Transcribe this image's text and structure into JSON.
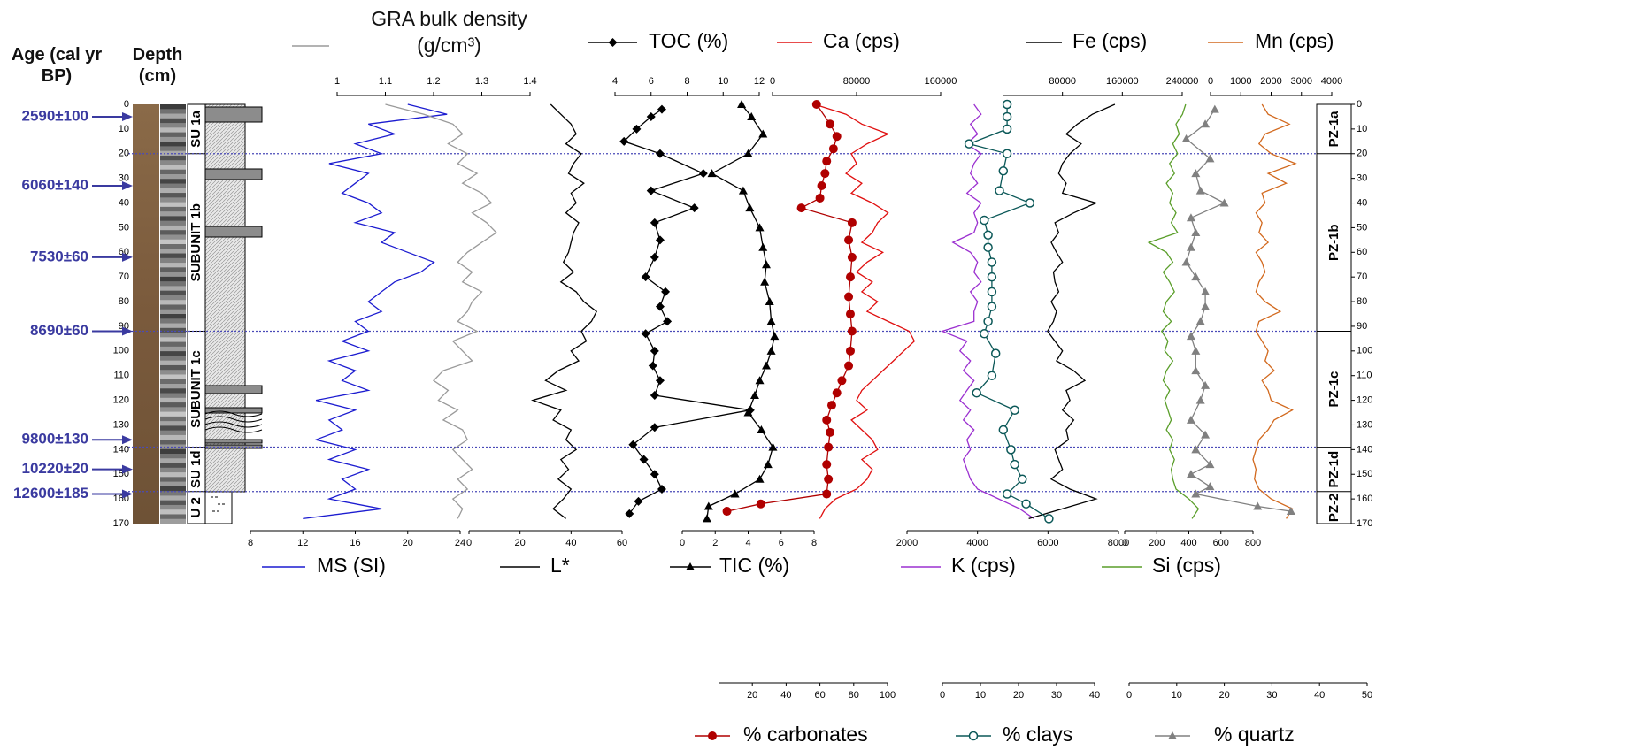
{
  "chart_data": {
    "type": "depth-profile",
    "age_header": "Age (cal yr BP)",
    "depth_header": "Depth (cm)",
    "ylim": [
      0,
      170
    ],
    "yticks": [
      0,
      10,
      20,
      30,
      40,
      50,
      60,
      70,
      80,
      90,
      100,
      110,
      120,
      130,
      140,
      150,
      160,
      170
    ],
    "depth": [
      0,
      4,
      8,
      12,
      16,
      20,
      24,
      28,
      32,
      36,
      40,
      44,
      48,
      52,
      56,
      60,
      64,
      68,
      72,
      76,
      80,
      84,
      88,
      92,
      96,
      100,
      104,
      108,
      112,
      116,
      120,
      124,
      128,
      132,
      136,
      140,
      144,
      148,
      152,
      156,
      160,
      164,
      168
    ],
    "ages": [
      {
        "label": "2590±100",
        "depth": 5
      },
      {
        "label": "6060±140",
        "depth": 33
      },
      {
        "label": "7530±60",
        "depth": 62
      },
      {
        "label": "8690±60",
        "depth": 92
      },
      {
        "label": "9800±130",
        "depth": 136
      },
      {
        "label": "10220±20",
        "depth": 148
      },
      {
        "label": "12600±185",
        "depth": 158
      }
    ],
    "subunits": [
      {
        "label": "SU 1a",
        "top": 0,
        "bottom": 20
      },
      {
        "label": "SUBUNIT 1b",
        "top": 20,
        "bottom": 92
      },
      {
        "label": "SUBUNIT 1c",
        "top": 92,
        "bottom": 139
      },
      {
        "label": "SU 1d",
        "top": 139,
        "bottom": 157
      },
      {
        "label": "U 2",
        "top": 157,
        "bottom": 170
      }
    ],
    "zones": [
      {
        "label": "PZ-1a",
        "top": 0,
        "bottom": 20
      },
      {
        "label": "PZ-1b",
        "top": 20,
        "bottom": 92
      },
      {
        "label": "PZ-1c",
        "top": 92,
        "bottom": 139
      },
      {
        "label": "PZ-1d",
        "top": 139,
        "bottom": 157
      },
      {
        "label": "PZ-2",
        "top": 157,
        "bottom": 170
      }
    ],
    "series": [
      {
        "name": "MS (SI)",
        "color": "#1c1cd0",
        "xlim": [
          8,
          24
        ],
        "xticks": [
          8,
          12,
          16,
          20,
          24
        ],
        "values": [
          20,
          23,
          17,
          19,
          16,
          18,
          14,
          17,
          16,
          15,
          17,
          18,
          16,
          19,
          18,
          20,
          22,
          21,
          19,
          18,
          17,
          18,
          16,
          17,
          15,
          17,
          14,
          16,
          15,
          17,
          13,
          16,
          14,
          15,
          13,
          16,
          14,
          17,
          15,
          16,
          14,
          18,
          12
        ]
      },
      {
        "name": "GRA bulk density (g/cm³)",
        "color": "#9a9a9a",
        "xlim": [
          1,
          1.4
        ],
        "xticks": [
          1,
          1.1,
          1.2,
          1.3,
          1.4
        ],
        "values": [
          1.1,
          1.18,
          1.24,
          1.26,
          1.23,
          1.27,
          1.25,
          1.29,
          1.26,
          1.3,
          1.32,
          1.28,
          1.31,
          1.33,
          1.3,
          1.27,
          1.25,
          1.28,
          1.26,
          1.3,
          1.28,
          1.27,
          1.25,
          1.29,
          1.24,
          1.26,
          1.28,
          1.22,
          1.2,
          1.23,
          1.21,
          1.25,
          1.22,
          1.26,
          1.27,
          1.24,
          1.26,
          1.28,
          1.25,
          1.27,
          1.24,
          1.26,
          1.25
        ]
      },
      {
        "name": "L*",
        "color": "#000000",
        "xlim": [
          0,
          60
        ],
        "xticks": [
          0,
          20,
          40,
          60
        ],
        "values": [
          32,
          36,
          40,
          42,
          38,
          44,
          41,
          39,
          45,
          40,
          42,
          38,
          43,
          41,
          40,
          39,
          37,
          41,
          36,
          42,
          45,
          50,
          48,
          44,
          46,
          40,
          43,
          35,
          30,
          38,
          25,
          36,
          33,
          40,
          38,
          42,
          36,
          39,
          35,
          40,
          37,
          33,
          38
        ]
      },
      {
        "name": "TOC (%)",
        "color": "#000000",
        "marker": "diamond",
        "xlim": [
          4,
          12
        ],
        "xticks": [
          4,
          6,
          8,
          10,
          12
        ],
        "depth": [
          2,
          5,
          10,
          15,
          20,
          28,
          35,
          42,
          48,
          55,
          62,
          70,
          76,
          82,
          88,
          93,
          100,
          106,
          112,
          118,
          124,
          131,
          138,
          144,
          150,
          156,
          161,
          166
        ],
        "values": [
          6.6,
          6.0,
          5.2,
          4.5,
          6.5,
          8.9,
          6.0,
          8.4,
          6.2,
          6.5,
          6.2,
          5.7,
          6.8,
          6.5,
          6.9,
          5.7,
          6.2,
          6.1,
          6.5,
          6.2,
          11.5,
          6.2,
          5.0,
          5.6,
          6.2,
          6.6,
          5.3,
          4.8
        ]
      },
      {
        "name": "TIC (%)",
        "color": "#000000",
        "marker": "triangle",
        "xlim": [
          0,
          8
        ],
        "xticks": [
          0,
          2,
          4,
          6,
          8
        ],
        "depth": [
          0,
          5,
          12,
          20,
          28,
          35,
          42,
          50,
          58,
          65,
          72,
          80,
          88,
          94,
          100,
          106,
          112,
          118,
          125,
          132,
          139,
          146,
          152,
          158,
          163,
          168
        ],
        "values": [
          3.6,
          4.2,
          4.9,
          4.0,
          1.8,
          3.7,
          4.1,
          4.7,
          4.9,
          5.1,
          5.0,
          5.3,
          5.4,
          5.6,
          5.4,
          5.1,
          4.7,
          4.4,
          4.0,
          4.8,
          5.5,
          5.2,
          4.7,
          3.2,
          1.6,
          1.5
        ]
      },
      {
        "name": "Ca (cps)",
        "color": "#e01010",
        "xlim": [
          0,
          160000
        ],
        "xticks": [
          0,
          80000,
          160000
        ],
        "values": [
          40000,
          70000,
          85000,
          110000,
          90000,
          75000,
          80000,
          70000,
          85000,
          75000,
          95000,
          110000,
          100000,
          95000,
          85000,
          105000,
          90000,
          80000,
          95000,
          85000,
          100000,
          90000,
          110000,
          130000,
          135000,
          125000,
          115000,
          105000,
          95000,
          85000,
          80000,
          90000,
          75000,
          85000,
          95000,
          100000,
          85000,
          95000,
          90000,
          80000,
          60000,
          50000,
          45000
        ]
      },
      {
        "name": "K (cps)",
        "color": "#9b30d0",
        "xlim": [
          2000,
          8000
        ],
        "xticks": [
          2000,
          4000,
          6000,
          8000
        ],
        "values": [
          3900,
          4100,
          3800,
          4000,
          3700,
          4100,
          3900,
          3800,
          4000,
          3700,
          4100,
          3900,
          4000,
          3900,
          3300,
          3800,
          4000,
          3900,
          4100,
          3800,
          4000,
          3900,
          3900,
          3000,
          3700,
          3500,
          3800,
          3600,
          3900,
          3700,
          3500,
          3800,
          3600,
          3900,
          3700,
          3800,
          3600,
          3700,
          3800,
          4000,
          4600,
          5200,
          5600
        ]
      },
      {
        "name": "Fe (cps)",
        "color": "#000000",
        "xlim": [
          0,
          240000
        ],
        "xticks": [
          80000,
          160000,
          240000
        ],
        "values": [
          150000,
          120000,
          100000,
          85000,
          105000,
          90000,
          80000,
          75000,
          85000,
          80000,
          125000,
          95000,
          70000,
          75000,
          65000,
          72000,
          80000,
          68000,
          70000,
          75000,
          65000,
          72000,
          68000,
          60000,
          70000,
          80000,
          72000,
          95000,
          110000,
          85000,
          90000,
          80000,
          95000,
          85000,
          88000,
          70000,
          75000,
          80000,
          65000,
          90000,
          125000,
          80000,
          35000
        ]
      },
      {
        "name": "Si (cps)",
        "color": "#5a9e2a",
        "xlim": [
          0,
          800
        ],
        "xticks": [
          0,
          200,
          400,
          600,
          800
        ],
        "values": [
          380,
          360,
          320,
          340,
          300,
          330,
          280,
          310,
          260,
          300,
          280,
          320,
          290,
          330,
          150,
          260,
          300,
          240,
          280,
          310,
          260,
          240,
          290,
          230,
          270,
          250,
          300,
          260,
          240,
          280,
          250,
          270,
          290,
          260,
          300,
          280,
          310,
          290,
          300,
          320,
          400,
          460,
          420
        ]
      },
      {
        "name": "Mn (cps)",
        "color": "#d2691e",
        "xlim": [
          0,
          4000
        ],
        "xticks": [
          0,
          1000,
          2000,
          3000,
          4000
        ],
        "values": [
          1700,
          1900,
          2600,
          1800,
          1600,
          2000,
          2800,
          1900,
          2500,
          1700,
          1800,
          1500,
          1700,
          1600,
          1900,
          1500,
          1700,
          1800,
          1600,
          1500,
          1800,
          2300,
          1600,
          1500,
          1700,
          1900,
          1800,
          2100,
          1700,
          1900,
          2000,
          2700,
          2100,
          1900,
          1600,
          1500,
          1400,
          1500,
          1450,
          1600,
          2000,
          2700,
          2500
        ]
      },
      {
        "name": "% carbonates",
        "color": "#b00000",
        "marker": "circle",
        "xlim": [
          0,
          100
        ],
        "xticks": [
          20,
          40,
          60,
          80,
          100
        ],
        "depth": [
          0,
          8,
          13,
          18,
          23,
          28,
          33,
          38,
          42,
          48,
          55,
          62,
          70,
          78,
          85,
          92,
          100,
          106,
          112,
          117,
          122,
          128,
          133,
          139,
          146,
          152,
          158,
          162,
          165
        ],
        "values": [
          58,
          66,
          70,
          68,
          64,
          63,
          61,
          60,
          49,
          79,
          77,
          79,
          78,
          77,
          78,
          79,
          78,
          77,
          73,
          70,
          67,
          64,
          66,
          65,
          64,
          65,
          64,
          25,
          5
        ]
      },
      {
        "name": "% clays",
        "color": "#0b5858",
        "marker": "open-circle",
        "xlim": [
          0,
          40
        ],
        "xticks": [
          0,
          10,
          20,
          30,
          40
        ],
        "depth": [
          0,
          5,
          10,
          16,
          20,
          27,
          35,
          40,
          47,
          53,
          58,
          64,
          70,
          76,
          82,
          88,
          93,
          101,
          110,
          117,
          124,
          132,
          140,
          146,
          152,
          158,
          162,
          168
        ],
        "values": [
          17,
          17,
          17,
          7,
          17,
          16,
          15,
          23,
          11,
          12,
          12,
          13,
          13,
          13,
          13,
          12,
          11,
          14,
          13,
          9,
          19,
          16,
          18,
          19,
          21,
          17,
          22,
          28
        ]
      },
      {
        "name": "% quartz",
        "color": "#808080",
        "marker": "triangle",
        "xlim": [
          0,
          50
        ],
        "xticks": [
          0,
          10,
          20,
          30,
          40,
          50
        ],
        "depth": [
          2,
          8,
          14,
          22,
          28,
          35,
          40,
          46,
          52,
          58,
          64,
          70,
          76,
          82,
          88,
          94,
          100,
          108,
          114,
          120,
          128,
          134,
          140,
          146,
          150,
          155,
          158,
          163,
          165
        ],
        "values": [
          18,
          16,
          12,
          17,
          14,
          15,
          20,
          13,
          14,
          13,
          12,
          14,
          16,
          16,
          15,
          13,
          14,
          14,
          16,
          15,
          13,
          16,
          14,
          17,
          13,
          17,
          14,
          27,
          34
        ]
      }
    ]
  }
}
